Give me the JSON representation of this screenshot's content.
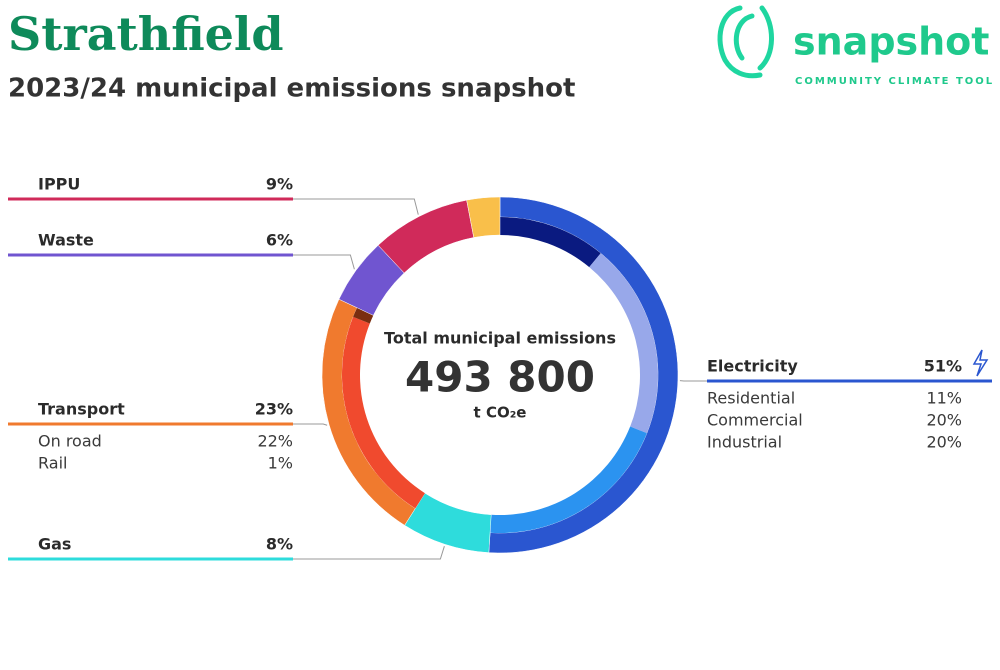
{
  "header": {
    "title": "Strathfield",
    "subtitle": "2023/24 municipal emissions snapshot"
  },
  "logo": {
    "name": "snapshot",
    "tagline": "COMMUNITY CLIMATE TOOL"
  },
  "chart_data": {
    "type": "donut",
    "center_label": "Total municipal emissions",
    "total": 493800,
    "total_label": "493 800",
    "unit": "t CO₂e",
    "categories": [
      "Electricity",
      "Gas",
      "Transport",
      "Waste",
      "IPPU",
      null
    ],
    "values": [
      51,
      8,
      23,
      6,
      9,
      3
    ],
    "value_labels": [
      "51%",
      "8%",
      "23%",
      "6%",
      "9%",
      null
    ],
    "colors": [
      "#2a56d0",
      "#2edcdc",
      "#f07a2e",
      "#7055d0",
      "#d02a5a",
      "#f9bf4a"
    ],
    "breakdowns": [
      {
        "categories": [
          "Residential",
          "Commercial",
          "Industrial"
        ],
        "values": [
          11,
          20,
          20
        ],
        "value_labels": [
          "11%",
          "20%",
          "20%"
        ],
        "colors": [
          "#0a1a80",
          "#98a8ea",
          "#2b93f0"
        ]
      },
      null,
      {
        "categories": [
          "On road",
          "Rail"
        ],
        "values": [
          22,
          1
        ],
        "value_labels": [
          "22%",
          "1%"
        ],
        "colors": [
          "#f04a2e",
          "#7a2e10"
        ]
      },
      null,
      null,
      null
    ]
  }
}
